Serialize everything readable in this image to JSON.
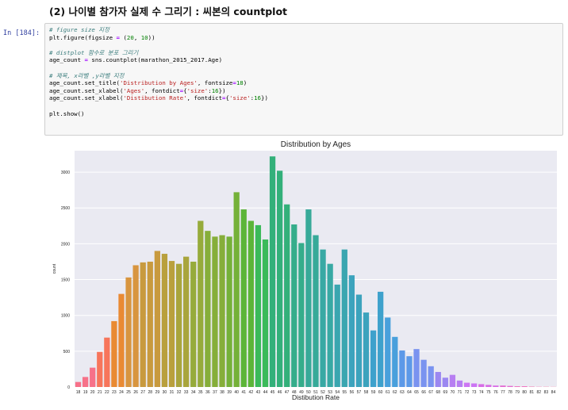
{
  "heading": "(2) 나이별 참가자 실제 수 그리기 : 씨본의 countplot",
  "cell": {
    "prompt": "In [184]:",
    "lines": [
      [
        {
          "c": "cm",
          "t": "# figure size 지정"
        }
      ],
      [
        {
          "c": "",
          "t": "plt.figure(figsize "
        },
        {
          "c": "op",
          "t": "="
        },
        {
          "c": "",
          "t": " ("
        },
        {
          "c": "nu",
          "t": "20"
        },
        {
          "c": "",
          "t": ", "
        },
        {
          "c": "nu",
          "t": "10"
        },
        {
          "c": "",
          "t": "))"
        }
      ],
      [],
      [
        {
          "c": "cm",
          "t": "# distplot 함수로 분포 그리기"
        }
      ],
      [
        {
          "c": "",
          "t": "age_count "
        },
        {
          "c": "op",
          "t": "="
        },
        {
          "c": "",
          "t": " sns.countplot(marathon_2015_2017.Age)"
        }
      ],
      [],
      [
        {
          "c": "cm",
          "t": "# 제목, x라벨 ,y라벨 지정"
        }
      ],
      [
        {
          "c": "",
          "t": "age_count.set_title("
        },
        {
          "c": "st",
          "t": "'Distribution by Ages'"
        },
        {
          "c": "",
          "t": ", fontsize"
        },
        {
          "c": "op",
          "t": "="
        },
        {
          "c": "nu",
          "t": "18"
        },
        {
          "c": "",
          "t": ")"
        }
      ],
      [
        {
          "c": "",
          "t": "age_count.set_xlabel("
        },
        {
          "c": "st",
          "t": "'Ages'"
        },
        {
          "c": "",
          "t": ", fontdict"
        },
        {
          "c": "op",
          "t": "="
        },
        {
          "c": "",
          "t": "{"
        },
        {
          "c": "st",
          "t": "'size'"
        },
        {
          "c": "",
          "t": ":"
        },
        {
          "c": "nu",
          "t": "16"
        },
        {
          "c": "",
          "t": "})"
        }
      ],
      [
        {
          "c": "",
          "t": "age_count.set_xlabel("
        },
        {
          "c": "st",
          "t": "'Distibution Rate'"
        },
        {
          "c": "",
          "t": ", fontdict"
        },
        {
          "c": "op",
          "t": "="
        },
        {
          "c": "",
          "t": "{"
        },
        {
          "c": "st",
          "t": "'size'"
        },
        {
          "c": "",
          "t": ":"
        },
        {
          "c": "nu",
          "t": "16"
        },
        {
          "c": "",
          "t": "})"
        }
      ],
      [],
      [
        {
          "c": "",
          "t": "plt.show()"
        }
      ]
    ]
  },
  "chart_data": {
    "type": "bar",
    "title": "Distribution by Ages",
    "xlabel": "Distibution Rate",
    "ylabel": "count",
    "ylim": [
      0,
      3300
    ],
    "yticks": [
      0,
      500,
      1000,
      1500,
      2000,
      2500,
      3000
    ],
    "grid": true,
    "categories": [
      "18",
      "19",
      "20",
      "21",
      "22",
      "23",
      "24",
      "25",
      "26",
      "27",
      "28",
      "29",
      "30",
      "31",
      "32",
      "33",
      "34",
      "35",
      "36",
      "37",
      "38",
      "39",
      "40",
      "41",
      "42",
      "43",
      "44",
      "45",
      "46",
      "47",
      "48",
      "49",
      "50",
      "51",
      "52",
      "53",
      "54",
      "55",
      "56",
      "57",
      "58",
      "59",
      "60",
      "61",
      "62",
      "63",
      "64",
      "65",
      "66",
      "67",
      "68",
      "69",
      "70",
      "71",
      "72",
      "73",
      "74",
      "75",
      "76",
      "77",
      "78",
      "79",
      "80",
      "81",
      "82",
      "83",
      "84"
    ],
    "values": [
      70,
      140,
      270,
      490,
      690,
      920,
      1300,
      1530,
      1700,
      1740,
      1750,
      1900,
      1860,
      1760,
      1720,
      1820,
      1750,
      2320,
      2180,
      2100,
      2120,
      2100,
      2720,
      2480,
      2320,
      2260,
      2060,
      3220,
      3020,
      2550,
      2270,
      2010,
      2480,
      2120,
      1920,
      1720,
      1430,
      1920,
      1560,
      1290,
      1040,
      790,
      1330,
      970,
      700,
      510,
      430,
      530,
      380,
      290,
      210,
      130,
      170,
      90,
      60,
      50,
      40,
      30,
      20,
      20,
      15,
      10,
      10,
      5,
      3,
      3,
      2
    ],
    "colors": [
      "#f77189",
      "#f7755b",
      "#e98a33",
      "#d8953f",
      "#c89a3e",
      "#b9a03d",
      "#a9a53c",
      "#96ab3b",
      "#86ae3a",
      "#75b139",
      "#5cb538",
      "#3bba5a",
      "#33b07a",
      "#35ad8b",
      "#37aa99",
      "#38a9a4",
      "#3aa6b0",
      "#3ca3bd",
      "#3ea1cc",
      "#49a0dc",
      "#5c99e8",
      "#7a93f0",
      "#9b87f1",
      "#b77ff2",
      "#cc75f4",
      "#d86de6",
      "#e36bd2",
      "#f069bc",
      "#f46caa",
      "#f56f9b"
    ]
  }
}
